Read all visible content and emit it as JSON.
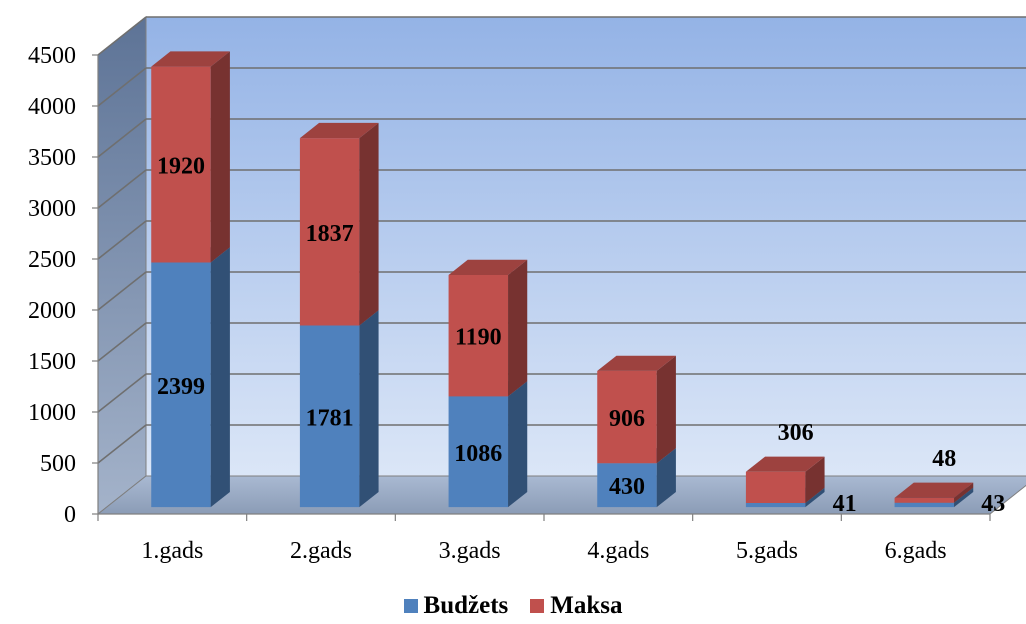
{
  "chart_data": {
    "type": "bar",
    "stacked": true,
    "three_d": true,
    "categories": [
      "1.gads",
      "2.gads",
      "3.gads",
      "4.gads",
      "5.gads",
      "6.gads"
    ],
    "series": [
      {
        "name": "Budžets",
        "values": [
          2399,
          1781,
          1086,
          430,
          41,
          43
        ],
        "color": "#4f81bd",
        "labels": [
          "2399",
          "1781",
          "1086",
          "430",
          "41",
          "43"
        ]
      },
      {
        "name": "Maksa",
        "values": [
          1920,
          1837,
          1190,
          906,
          306,
          48
        ],
        "color": "#c0504d",
        "labels": [
          "1920",
          "1837",
          "1190",
          "906",
          "306",
          "48"
        ]
      }
    ],
    "yticks": [
      "0",
      "500",
      "1000",
      "1500",
      "2000",
      "2500",
      "3000",
      "3500",
      "4000",
      "4500"
    ],
    "ylim": [
      0,
      4500
    ],
    "grid": true,
    "legend_position": "bottom",
    "title": "",
    "xlabel": "",
    "ylabel": ""
  }
}
